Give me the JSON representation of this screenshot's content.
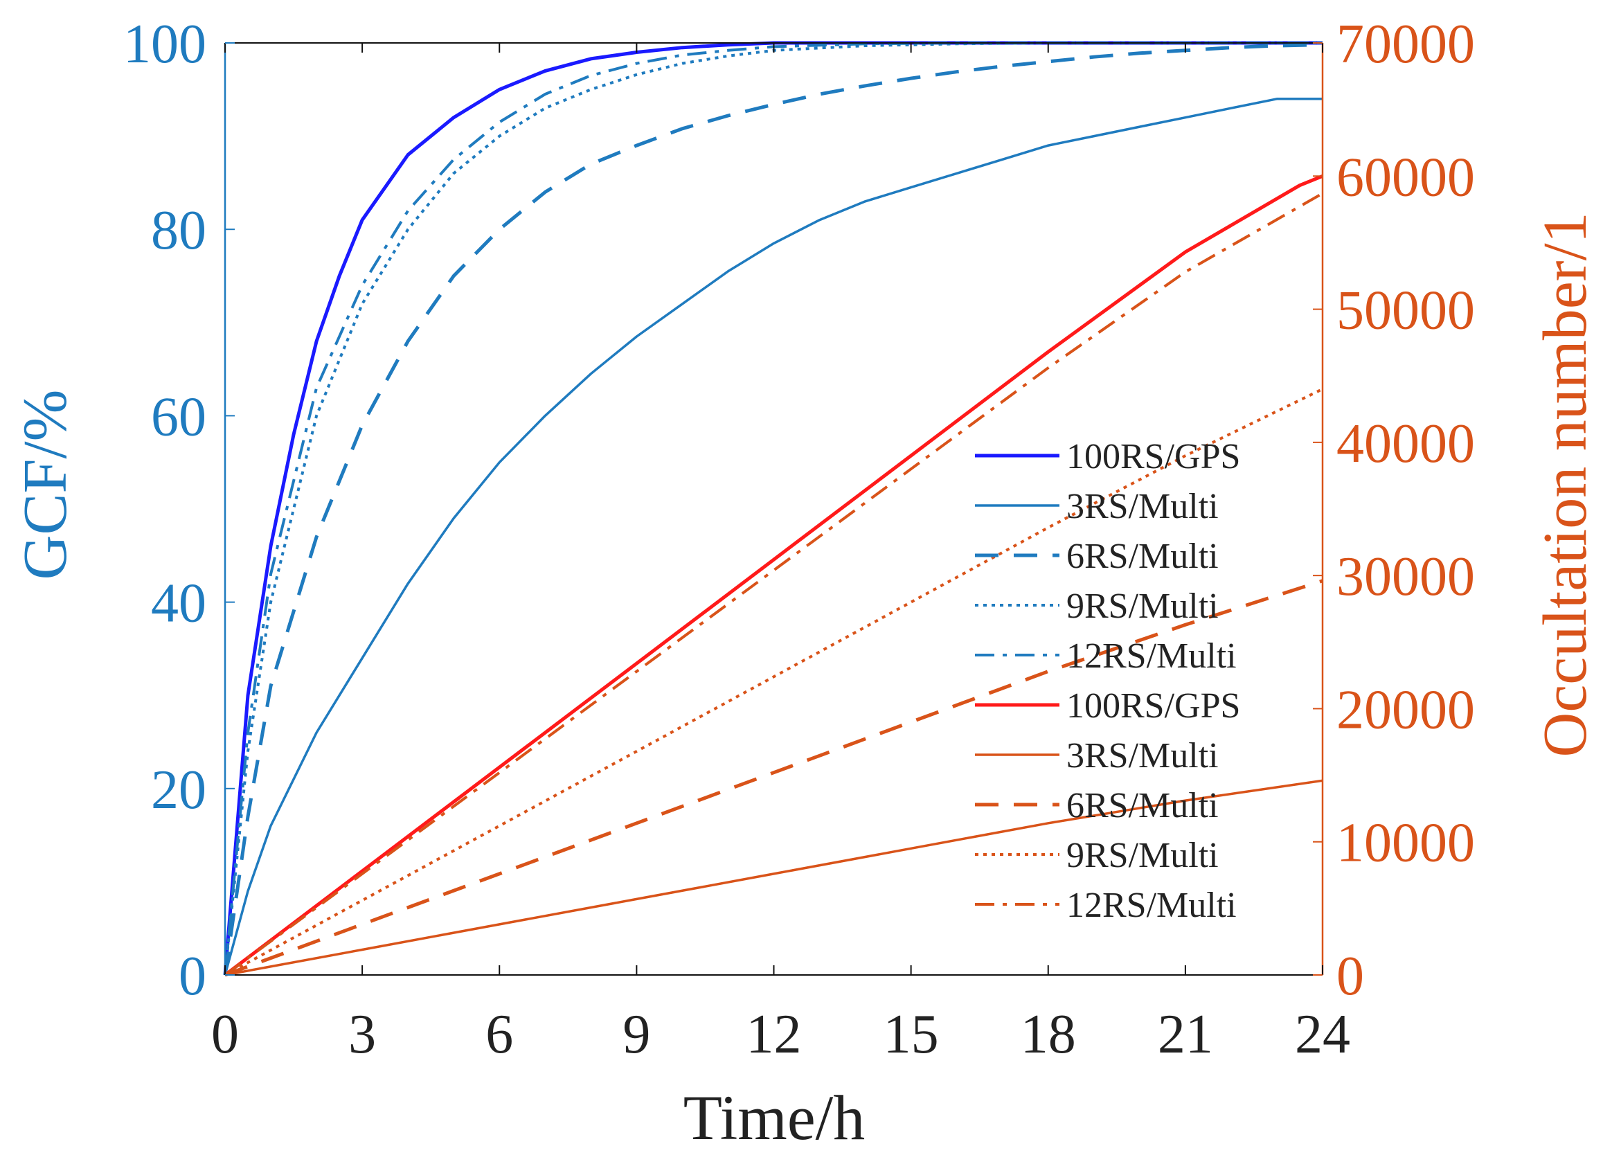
{
  "chart_data": {
    "type": "line",
    "title": "",
    "xlabel": "Time/h",
    "ylabel_left": "GCF/%",
    "ylabel_right": "Occultation number/1",
    "xlim": [
      0,
      24
    ],
    "ylim_left": [
      0,
      100
    ],
    "ylim_right": [
      0,
      70000
    ],
    "x_ticks": [
      0,
      3,
      6,
      9,
      12,
      15,
      18,
      21,
      24
    ],
    "y_ticks_left": [
      0,
      20,
      40,
      60,
      80,
      100
    ],
    "y_ticks_right": [
      0,
      10000,
      20000,
      30000,
      40000,
      50000,
      60000,
      70000
    ],
    "grid": false,
    "legend_position": "center-right",
    "colors": {
      "left_axis": "#1f7bbf",
      "right_axis": "#d95319",
      "gcf_gps": "#1a1aff",
      "gcf_multi": "#1f7bbf",
      "occ_gps": "#ff1a1a",
      "occ_multi": "#d95319"
    },
    "series": [
      {
        "name": "100RS/GPS",
        "axis": "left",
        "style": "solid",
        "width": 5,
        "color": "#1a1aff",
        "x": [
          0,
          0.5,
          1,
          1.5,
          2,
          2.5,
          3,
          4,
          5,
          6,
          7,
          8,
          9,
          10,
          11,
          12,
          15,
          18,
          21,
          24
        ],
        "values": [
          0,
          30,
          46,
          58,
          68,
          75,
          81,
          88,
          92,
          95,
          97,
          98.3,
          99,
          99.5,
          99.8,
          100,
          100,
          100,
          100,
          100
        ]
      },
      {
        "name": "3RS/Multi",
        "axis": "left",
        "style": "solid",
        "width": 3.5,
        "color": "#1f7bbf",
        "x": [
          0,
          0.5,
          1,
          2,
          3,
          4,
          5,
          6,
          7,
          8,
          9,
          10,
          11,
          12,
          13,
          14,
          15,
          16,
          17,
          18,
          19,
          20,
          21,
          22,
          23,
          24
        ],
        "values": [
          0,
          9,
          16,
          26,
          34,
          42,
          49,
          55,
          60,
          64.5,
          68.5,
          72,
          75.5,
          78.5,
          81,
          83,
          84.5,
          86,
          87.5,
          89,
          90,
          91,
          92,
          93,
          94,
          94
        ]
      },
      {
        "name": "6RS/Multi",
        "axis": "left",
        "style": "dashed",
        "width": 5,
        "color": "#1f7bbf",
        "x": [
          0,
          0.5,
          1,
          2,
          3,
          4,
          5,
          6,
          7,
          8,
          9,
          10,
          11,
          12,
          13,
          14,
          15,
          16,
          17,
          18,
          19,
          20,
          21,
          22,
          23,
          24
        ],
        "values": [
          0,
          17,
          31,
          47,
          59,
          68,
          75,
          80,
          84,
          87,
          89,
          90.8,
          92.2,
          93.4,
          94.5,
          95.4,
          96.2,
          96.9,
          97.5,
          98,
          98.5,
          98.9,
          99.2,
          99.5,
          99.7,
          99.8
        ]
      },
      {
        "name": "9RS/Multi",
        "axis": "left",
        "style": "dotted",
        "width": 4,
        "color": "#1f7bbf",
        "x": [
          0,
          0.5,
          1,
          2,
          3,
          4,
          5,
          6,
          7,
          8,
          9,
          10,
          11,
          12,
          14,
          16,
          18,
          20,
          22,
          24
        ],
        "values": [
          0,
          24,
          40,
          60,
          72,
          80,
          86,
          90,
          93,
          95,
          96.6,
          97.8,
          98.6,
          99.2,
          99.7,
          99.9,
          100,
          100,
          100,
          100
        ]
      },
      {
        "name": "12RS/Multi",
        "axis": "left",
        "style": "dashdot",
        "width": 4,
        "color": "#1f7bbf",
        "x": [
          0,
          0.5,
          1,
          2,
          3,
          4,
          5,
          6,
          7,
          8,
          9,
          10,
          11,
          12,
          14,
          16,
          18,
          20,
          22,
          24
        ],
        "values": [
          0,
          26,
          43,
          63,
          74,
          82,
          87.5,
          91.5,
          94.5,
          96.5,
          97.8,
          98.7,
          99.2,
          99.6,
          99.9,
          100,
          100,
          100,
          100,
          100
        ]
      },
      {
        "name": "100RS/GPS",
        "axis": "right",
        "style": "solid",
        "width": 5,
        "color": "#ff1a1a",
        "x": [
          0,
          3,
          6,
          9,
          12,
          15,
          18,
          21,
          23.5,
          24
        ],
        "values": [
          0,
          7800,
          15600,
          23400,
          31200,
          39000,
          46800,
          54300,
          59300,
          60000
        ]
      },
      {
        "name": "3RS/Multi",
        "axis": "right",
        "style": "solid",
        "width": 3.5,
        "color": "#d95319",
        "x": [
          0,
          3,
          6,
          9,
          12,
          15,
          18,
          21,
          24
        ],
        "values": [
          0,
          1900,
          3800,
          5700,
          7600,
          9500,
          11400,
          13100,
          14600
        ]
      },
      {
        "name": "6RS/Multi",
        "axis": "right",
        "style": "dashed",
        "width": 5,
        "color": "#d95319",
        "x": [
          0,
          3,
          6,
          9,
          12,
          15,
          18,
          21,
          24
        ],
        "values": [
          0,
          3800,
          7600,
          11400,
          15200,
          19000,
          22800,
          26300,
          29600
        ]
      },
      {
        "name": "9RS/Multi",
        "axis": "right",
        "style": "dotted",
        "width": 4,
        "color": "#d95319",
        "x": [
          0,
          3,
          6,
          9,
          12,
          15,
          18,
          21,
          24
        ],
        "values": [
          0,
          5600,
          11200,
          16800,
          22400,
          28000,
          33600,
          39000,
          44000
        ]
      },
      {
        "name": "12RS/Multi",
        "axis": "right",
        "style": "dashdot",
        "width": 4,
        "color": "#d95319",
        "x": [
          0,
          3,
          6,
          9,
          12,
          15,
          18,
          21,
          24
        ],
        "values": [
          0,
          7600,
          15200,
          22800,
          30400,
          38000,
          45600,
          52800,
          58700
        ]
      }
    ]
  }
}
